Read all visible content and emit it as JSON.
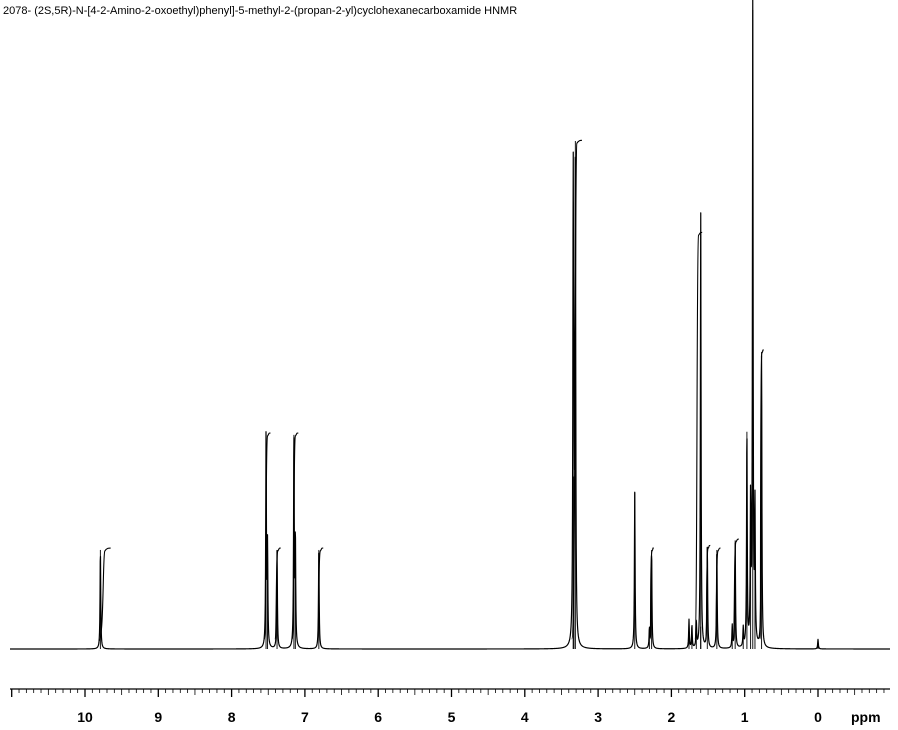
{
  "chart_data": {
    "type": "line",
    "title": "2078- (2S,5R)-N-[4-2-Amino-2-oxoethyl)phenyl]-5-methyl-2-(propan-2-yl)cyclohexanecarboxamide HNMR",
    "xlabel": "ppm",
    "ylabel": "",
    "x_reversed": true,
    "xlim": [
      11.0,
      -1.0
    ],
    "ylim": [
      0,
      100
    ],
    "grid": false,
    "legend": "none",
    "line_color": "#000000",
    "x_ticks": [
      10,
      9,
      8,
      7,
      6,
      5,
      4,
      3,
      2,
      1,
      0
    ],
    "x_tick_labels": [
      "10",
      "9",
      "8",
      "7",
      "6",
      "5",
      "4",
      "3",
      "2",
      "1",
      "0"
    ],
    "series": [
      {
        "values": [
          {
            "ppm": 9.79,
            "intensity": 15.5
          },
          {
            "ppm": 7.53,
            "intensity": 33.5
          },
          {
            "ppm": 7.51,
            "intensity": 15.5
          },
          {
            "ppm": 7.38,
            "intensity": 15.5
          },
          {
            "ppm": 7.15,
            "intensity": 33.5
          },
          {
            "ppm": 7.13,
            "intensity": 17.0
          },
          {
            "ppm": 6.81,
            "intensity": 15.5
          },
          {
            "ppm": 3.34,
            "intensity": 70.0
          },
          {
            "ppm": 3.33,
            "intensity": 27.0
          },
          {
            "ppm": 3.31,
            "intensity": 79.5
          },
          {
            "ppm": 2.5,
            "intensity": 24.5
          },
          {
            "ppm": 2.3,
            "intensity": 3.0
          },
          {
            "ppm": 2.27,
            "intensity": 15.5
          },
          {
            "ppm": 1.76,
            "intensity": 4.5
          },
          {
            "ppm": 1.72,
            "intensity": 3.5
          },
          {
            "ppm": 1.66,
            "intensity": 4.0
          },
          {
            "ppm": 1.6,
            "intensity": 3.5
          },
          {
            "ppm": 1.6,
            "intensity": 65.0
          },
          {
            "ppm": 1.51,
            "intensity": 16.0
          },
          {
            "ppm": 1.38,
            "intensity": 15.5
          },
          {
            "ppm": 1.17,
            "intensity": 3.5
          },
          {
            "ppm": 1.13,
            "intensity": 17.0
          },
          {
            "ppm": 1.02,
            "intensity": 3.0
          },
          {
            "ppm": 0.97,
            "intensity": 34.0
          },
          {
            "ppm": 0.92,
            "intensity": 22.5
          },
          {
            "ppm": 0.89,
            "intensity": 100.0
          },
          {
            "ppm": 0.86,
            "intensity": 21.5
          },
          {
            "ppm": 0.77,
            "intensity": 46.5
          },
          {
            "ppm": 0.0,
            "intensity": 1.5
          }
        ]
      }
    ]
  }
}
